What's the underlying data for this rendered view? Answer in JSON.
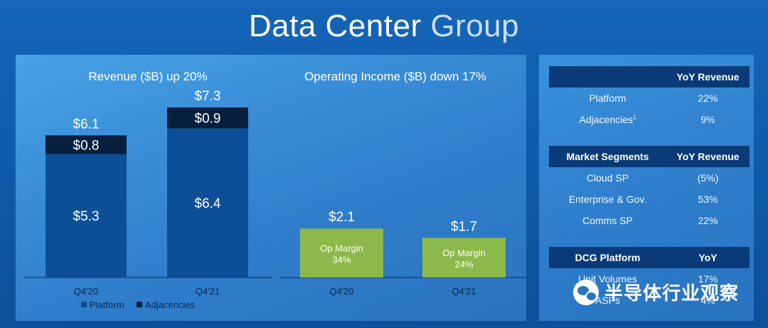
{
  "page_title": {
    "part1": "Data Center ",
    "part2": "Group"
  },
  "chart_data": [
    {
      "type": "bar",
      "stacked": true,
      "title": "Revenue ($B) up 20%",
      "categories": [
        "Q4'20",
        "Q4'21"
      ],
      "series": [
        {
          "name": "Platform",
          "values": [
            5.3,
            6.4
          ],
          "labels": [
            "$5.3",
            "$6.4"
          ],
          "color": "#0d4f97"
        },
        {
          "name": "Adjacencies",
          "values": [
            0.8,
            0.9
          ],
          "labels": [
            "$0.8",
            "$0.9"
          ],
          "color": "#071f3d"
        }
      ],
      "totals": [
        "$6.1",
        "$7.3"
      ],
      "ylim": [
        0,
        7.3
      ],
      "legend": "bottom"
    },
    {
      "type": "bar",
      "title": "Operating Income ($B) down 17%",
      "categories": [
        "Q4'20",
        "Q4'21"
      ],
      "values": [
        2.1,
        1.7
      ],
      "value_labels": [
        "$2.1",
        "$1.7"
      ],
      "annotations": [
        {
          "line1": "Op Margin",
          "line2": "34%"
        },
        {
          "line1": "Op Margin",
          "line2": "24%"
        }
      ],
      "color": "#8db84a",
      "ylim": [
        0,
        7.3
      ]
    }
  ],
  "tables": [
    {
      "headers": [
        "",
        "YoY Revenue"
      ],
      "rows": [
        {
          "label": "Platform",
          "value": "22%"
        },
        {
          "label": "Adjacencies",
          "sup": "1",
          "value": "9%"
        }
      ]
    },
    {
      "headers": [
        "Market Segments",
        "YoY Revenue"
      ],
      "rows": [
        {
          "label": "Cloud SP",
          "value": "(5%)"
        },
        {
          "label": "Enterprise & Gov.",
          "value": "53%"
        },
        {
          "label": "Comms SP",
          "value": "22%"
        }
      ]
    },
    {
      "headers": [
        "DCG Platform",
        "YoY"
      ],
      "rows": [
        {
          "label": "Unit Volumes",
          "value": "17%"
        },
        {
          "label": "ASPs",
          "value": "4%"
        }
      ]
    }
  ],
  "watermark": {
    "text": "半导体行业观察",
    "icon": "wechat-icon"
  },
  "colors": {
    "platform": "#0d4f97",
    "adjacencies": "#071f3d",
    "op_income": "#8db84a",
    "table_header": "#0a3b78"
  }
}
